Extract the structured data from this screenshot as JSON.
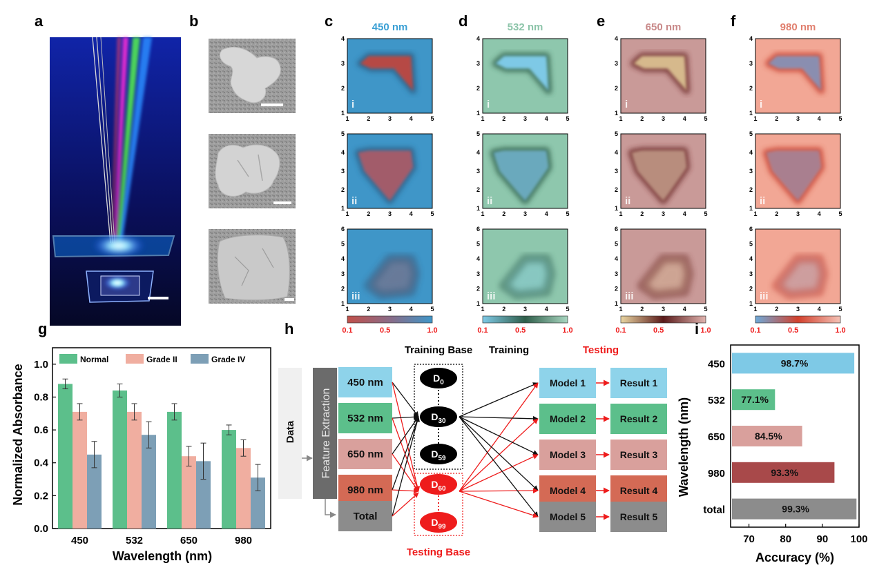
{
  "panels": {
    "a": "a",
    "b": "b",
    "c": "c",
    "d": "d",
    "e": "e",
    "f": "f",
    "g": "g",
    "h": "h",
    "i": "i"
  },
  "heatmap_titles": [
    "450 nm",
    "532 nm",
    "650 nm",
    "980 nm"
  ],
  "heatmap_title_colors": [
    "#3a9fd4",
    "#8cc4a9",
    "#c98a8a",
    "#e17f6e"
  ],
  "row_labels": [
    "i",
    "ii",
    "iii"
  ],
  "row_y_ticks": [
    [
      "1",
      "2",
      "3",
      "4"
    ],
    [
      "1",
      "2",
      "3",
      "4",
      "5"
    ],
    [
      "1",
      "2",
      "3",
      "4",
      "5",
      "6"
    ]
  ],
  "x_ticks": [
    "1",
    "2",
    "3",
    "4",
    "5"
  ],
  "colorbar_ticks": [
    "0.1",
    "0.5",
    "1.0"
  ],
  "heatmap_palettes": [
    {
      "bg": "#3f96c8",
      "edge": "#2a5f86",
      "low": "#b64a44",
      "lowA": "#a25b6b"
    },
    {
      "bg": "#8ec7ad",
      "edge": "#2f5e4a",
      "low": "#7ec9e6",
      "lowA": "#6aa9bd"
    },
    {
      "bg": "#c99a98",
      "edge": "#6a2828",
      "low": "#d6b98c",
      "lowA": "#b88d7d"
    },
    {
      "bg": "#f2a795",
      "edge": "#c9402e",
      "low": "#8a8eb0",
      "lowA": "#a97f8f"
    }
  ],
  "colorbar_gradients": [
    [
      "#c1504a",
      "#8a6b87",
      "#3f96c8"
    ],
    [
      "#7ec9e6",
      "#2f5e4a",
      "#a8d6c0"
    ],
    [
      "#ead6a2",
      "#5a1a1a",
      "#e0b3ae"
    ],
    [
      "#6ea9d8",
      "#d2402c",
      "#f4c2b6"
    ]
  ],
  "chart_data": [
    {
      "type": "bar",
      "ylabel": "Normalized Absorbance",
      "xlabel": "Wavelength (nm)",
      "categories": [
        "450",
        "532",
        "650",
        "980"
      ],
      "ylim": [
        0.0,
        1.1
      ],
      "y_ticks": [
        "0.0",
        "0.2",
        "0.4",
        "0.6",
        "0.8",
        "1.0"
      ],
      "legend_position": "top",
      "series": [
        {
          "name": "Normal",
          "color": "#5cbf8b",
          "values": [
            0.88,
            0.84,
            0.71,
            0.6
          ],
          "errors": [
            0.03,
            0.04,
            0.05,
            0.03
          ]
        },
        {
          "name": "Grade II",
          "color": "#f0aea0",
          "values": [
            0.71,
            0.71,
            0.44,
            0.49
          ],
          "errors": [
            0.05,
            0.05,
            0.06,
            0.05
          ]
        },
        {
          "name": "Grade IV",
          "color": "#7d9fb6",
          "values": [
            0.45,
            0.57,
            0.41,
            0.31
          ],
          "errors": [
            0.08,
            0.08,
            0.11,
            0.08
          ]
        }
      ]
    },
    {
      "type": "bar",
      "orientation": "horizontal",
      "xlabel": "Accuracy (%)",
      "ylabel": "Wavelength (nm)",
      "categories": [
        "450",
        "532",
        "650",
        "980",
        "total"
      ],
      "xlim": [
        65,
        100
      ],
      "x_ticks": [
        "70",
        "80",
        "90",
        "100"
      ],
      "values": [
        98.7,
        77.1,
        84.5,
        93.3,
        99.3
      ],
      "value_labels": [
        "98.7%",
        "77.1%",
        "84.5%",
        "93.3%",
        "99.3%"
      ],
      "colors": [
        "#7ec9e6",
        "#5cbf8b",
        "#d9a09c",
        "#a8494a",
        "#8c8c8c"
      ]
    }
  ],
  "flow": {
    "data_label": "Data",
    "feature_extraction": "Feature Extraction",
    "inputs": [
      "450 nm",
      "532 nm",
      "650 nm",
      "980 nm"
    ],
    "input_colors": [
      "#8ed3ea",
      "#5cbf8b",
      "#d9a09c",
      "#d46a55"
    ],
    "total_label": "Total",
    "training_base": "Training Base",
    "training": "Training",
    "testing": "Testing",
    "testing_base": "Testing Base",
    "training_nodes": [
      {
        "main": "D",
        "sub": "0"
      },
      {
        "main": "D",
        "sub": "30"
      },
      {
        "main": "D",
        "sub": "59"
      }
    ],
    "testing_nodes": [
      {
        "main": "D",
        "sub": "60"
      },
      {
        "main": "D",
        "sub": "99"
      }
    ],
    "models": [
      "Model 1",
      "Model 2",
      "Model 3",
      "Model 4",
      "Model 5"
    ],
    "results": [
      "Result 1",
      "Result 2",
      "Result 3",
      "Result 4",
      "Result 5"
    ],
    "stage_colors": [
      "#8ed3ea",
      "#5cbf8b",
      "#d9a09c",
      "#d46a55",
      "#8c8c8c"
    ]
  }
}
